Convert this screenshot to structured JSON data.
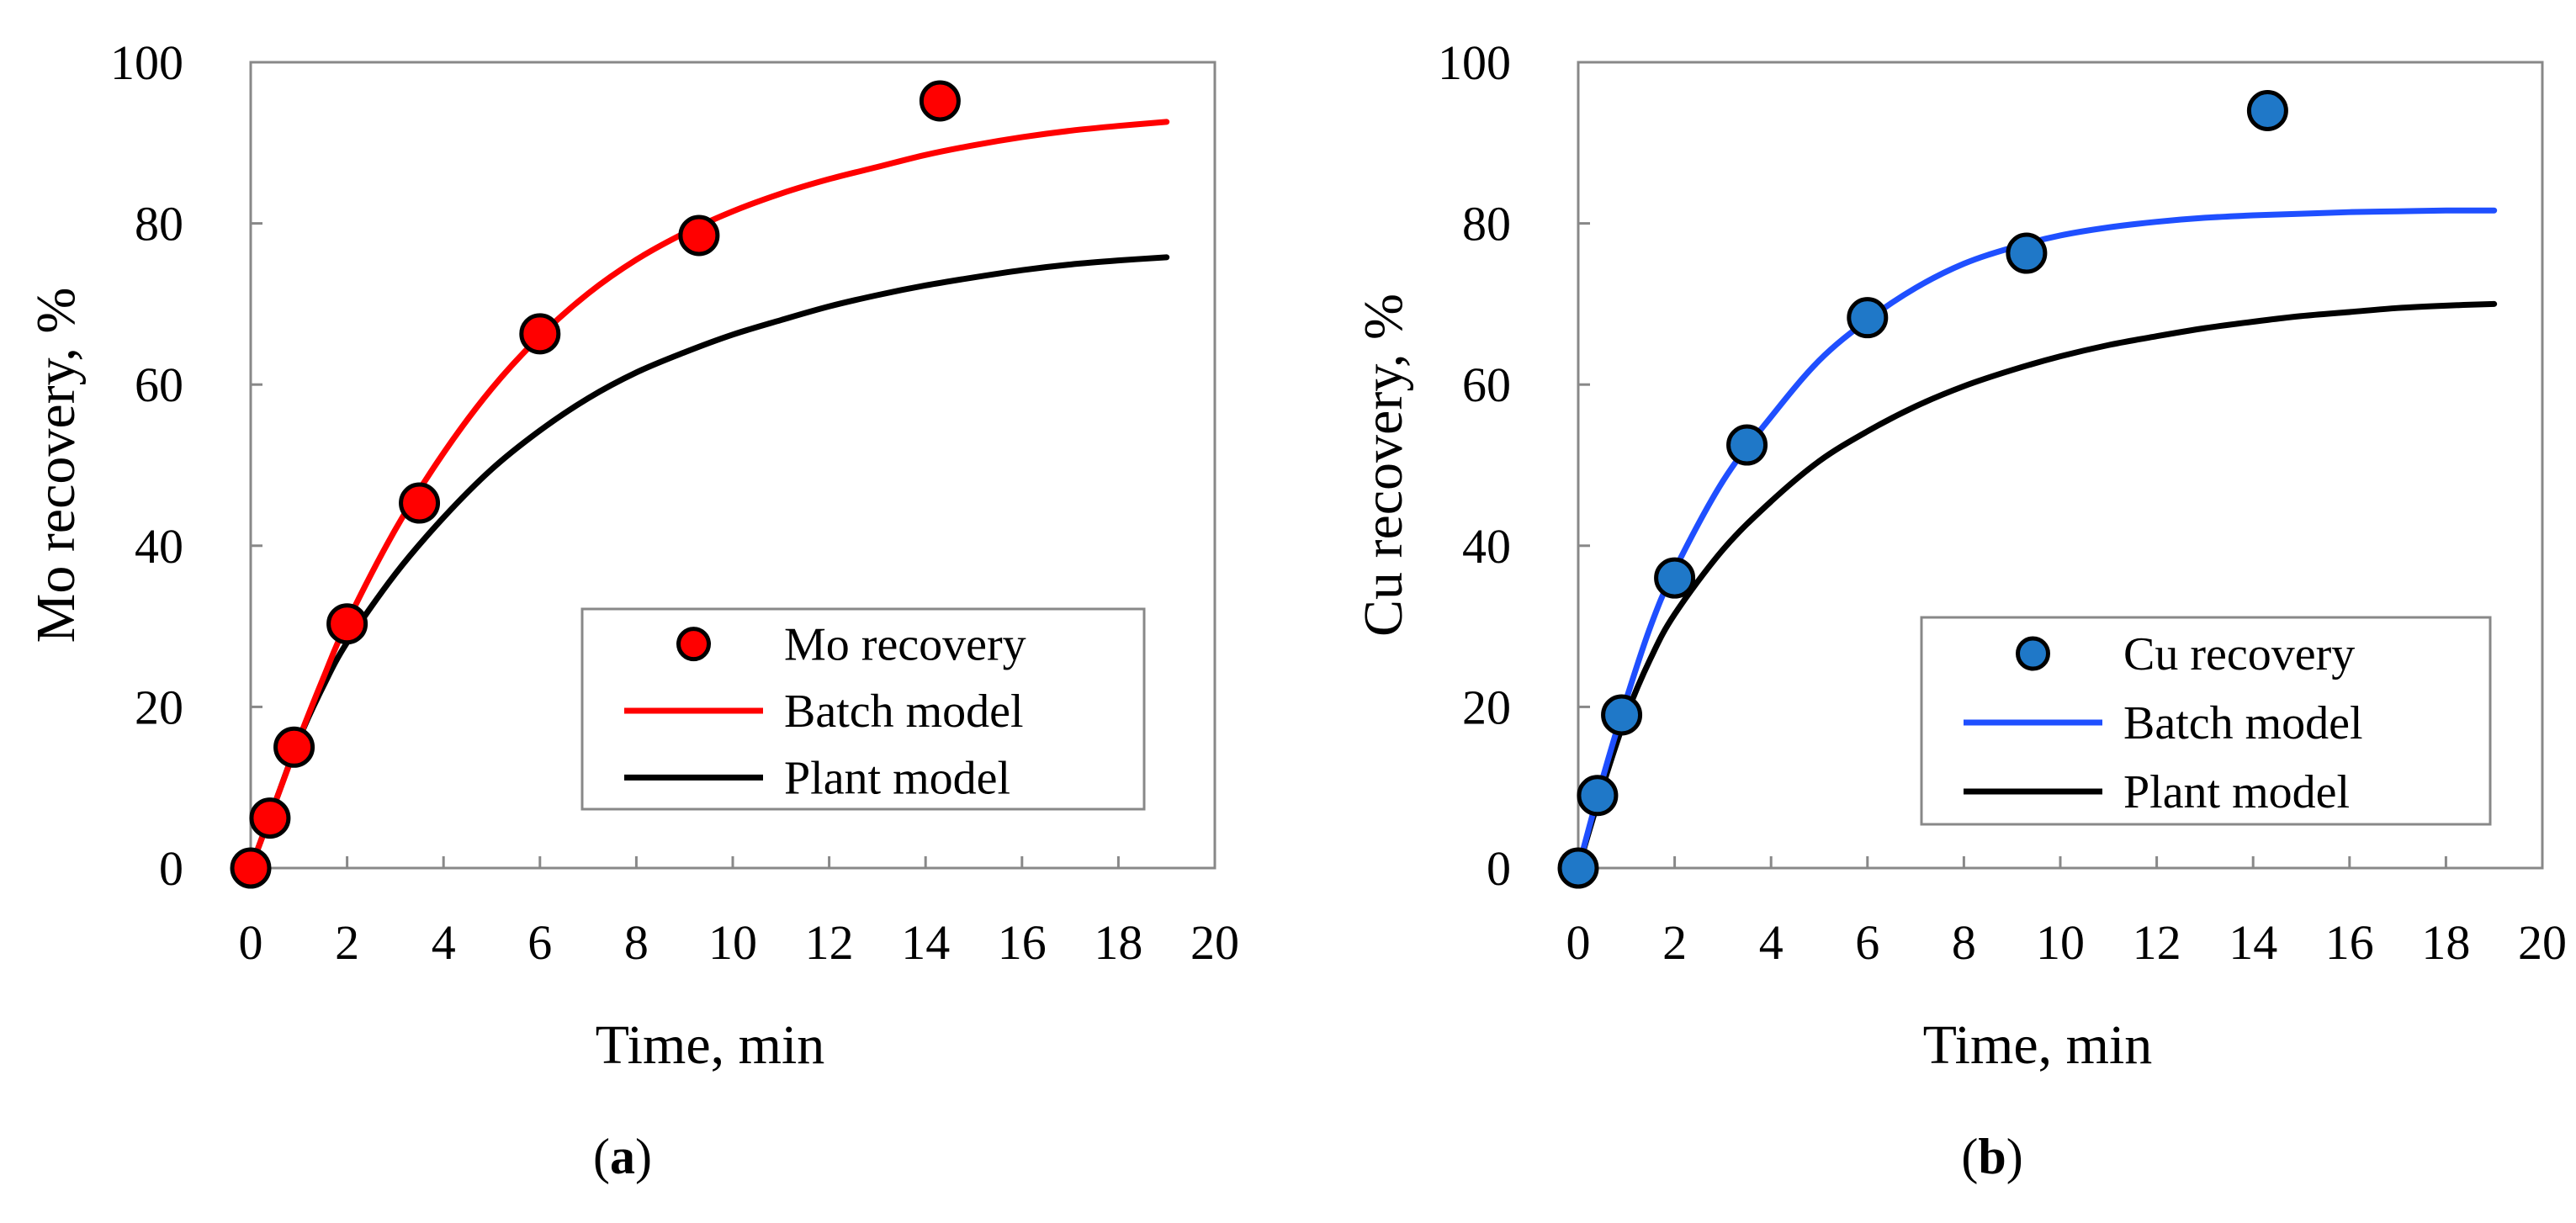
{
  "chart_data": [
    {
      "type": "line",
      "panel_label": "a",
      "xlabel": "Time, min",
      "ylabel": "Mo recovery, %",
      "xlim": [
        0,
        20
      ],
      "ylim": [
        0,
        100
      ],
      "xticks": [
        0,
        2,
        4,
        6,
        8,
        10,
        12,
        14,
        16,
        18,
        20
      ],
      "yticks": [
        0,
        20,
        40,
        60,
        80,
        100
      ],
      "grid": false,
      "legend_position": "bottom-right",
      "series": [
        {
          "name": "Mo recovery",
          "kind": "scatter",
          "color": "#ff0000",
          "x": [
            0,
            0.4,
            0.9,
            2,
            3.5,
            6,
            9.3,
            14.3
          ],
          "y": [
            0,
            6.2,
            15,
            30.3,
            45.3,
            66.3,
            78.5,
            95.2
          ]
        },
        {
          "name": "Batch model",
          "kind": "line",
          "color": "#ff0000",
          "x": [
            0,
            0.5,
            1,
            1.5,
            2,
            3,
            4,
            5,
            6,
            7,
            8,
            9,
            10,
            11,
            12,
            13,
            14,
            15,
            16,
            17,
            18,
            19
          ],
          "y": [
            0,
            8,
            16,
            23.5,
            30.5,
            42,
            51.5,
            59.5,
            66,
            71.3,
            75.5,
            78.8,
            81.5,
            83.7,
            85.5,
            87,
            88.5,
            89.7,
            90.7,
            91.5,
            92.1,
            92.6
          ]
        },
        {
          "name": "Plant model",
          "kind": "line",
          "color": "#000000",
          "x": [
            0,
            0.5,
            1,
            1.5,
            2,
            3,
            4,
            5,
            6,
            7,
            8,
            9,
            10,
            11,
            12,
            13,
            14,
            15,
            16,
            17,
            18,
            19
          ],
          "y": [
            0,
            8,
            16,
            22.5,
            28,
            36.5,
            43.5,
            49.5,
            54.3,
            58.3,
            61.5,
            64,
            66.2,
            68,
            69.7,
            71.1,
            72.3,
            73.3,
            74.2,
            74.9,
            75.4,
            75.8
          ]
        }
      ]
    },
    {
      "type": "line",
      "panel_label": "b",
      "xlabel": "Time, min",
      "ylabel": "Cu recovery, %",
      "xlim": [
        0,
        20
      ],
      "ylim": [
        0,
        100
      ],
      "xticks": [
        0,
        2,
        4,
        6,
        8,
        10,
        12,
        14,
        16,
        18,
        20
      ],
      "yticks": [
        0,
        20,
        40,
        60,
        80,
        100
      ],
      "grid": false,
      "legend_position": "bottom-right",
      "series": [
        {
          "name": "Cu recovery",
          "kind": "scatter",
          "color": "#1f78c8",
          "x": [
            0,
            0.4,
            0.9,
            2,
            3.5,
            6,
            9.3,
            14.3
          ],
          "y": [
            0,
            9,
            19,
            36,
            52.5,
            68.3,
            76.3,
            94
          ]
        },
        {
          "name": "Batch model",
          "kind": "line",
          "color": "#1f4fff",
          "x": [
            0,
            0.5,
            1,
            1.5,
            2,
            3,
            4,
            5,
            6,
            7,
            8,
            9,
            10,
            11,
            12,
            13,
            14,
            15,
            16,
            17,
            18,
            19
          ],
          "y": [
            0,
            11,
            21,
            30,
            37,
            48,
            56,
            63,
            68,
            72,
            75,
            77,
            78.5,
            79.5,
            80.2,
            80.7,
            81,
            81.2,
            81.4,
            81.5,
            81.6,
            81.6
          ]
        },
        {
          "name": "Plant model",
          "kind": "line",
          "color": "#000000",
          "x": [
            0,
            0.5,
            1,
            1.5,
            2,
            3,
            4,
            5,
            6,
            7,
            8,
            9,
            10,
            11,
            12,
            13,
            14,
            15,
            16,
            17,
            18,
            19
          ],
          "y": [
            0,
            10,
            19,
            26,
            31.5,
            39.5,
            45.5,
            50.5,
            54.2,
            57.3,
            59.8,
            61.8,
            63.5,
            64.9,
            66,
            67,
            67.8,
            68.5,
            69,
            69.5,
            69.8,
            70
          ]
        }
      ]
    }
  ]
}
